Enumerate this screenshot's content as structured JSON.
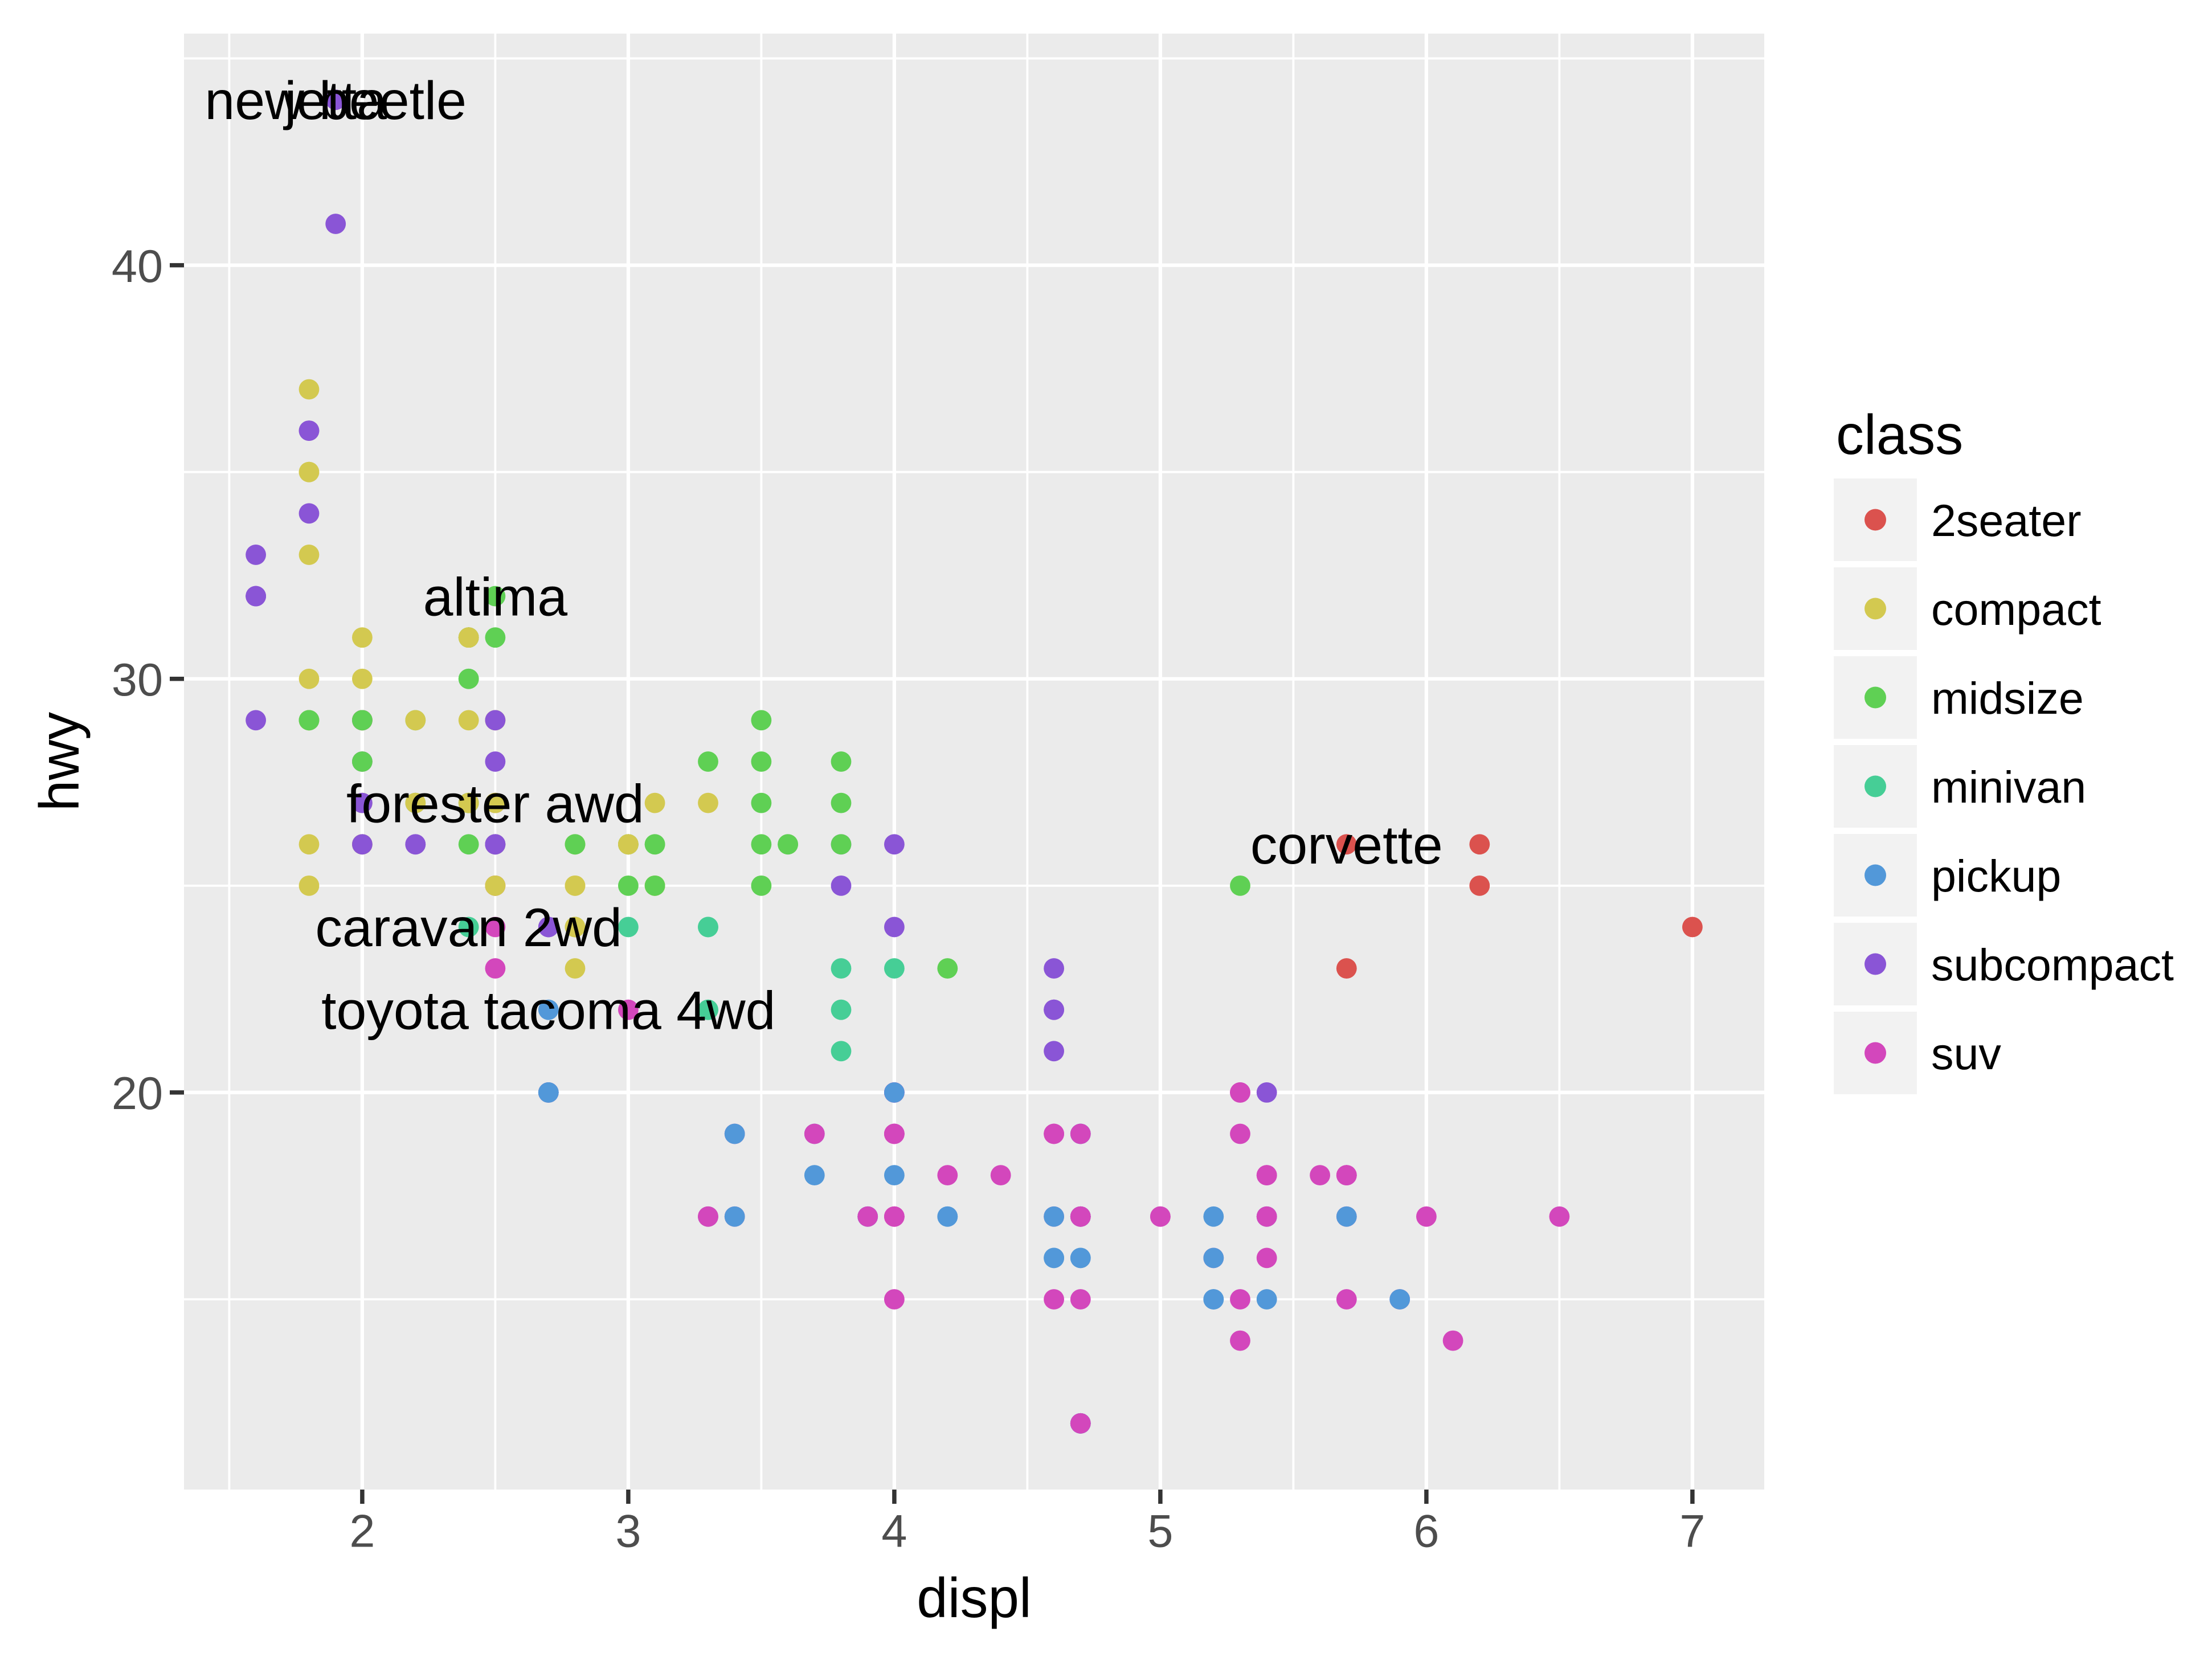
{
  "chart_data": {
    "type": "scatter",
    "title": "",
    "xlabel": "displ",
    "ylabel": "hwy",
    "legend_title": "class",
    "legend_position": "right",
    "grid": "on",
    "xlim": [
      1.33,
      7.27
    ],
    "ylim": [
      10.4,
      45.6
    ],
    "x_major_ticks": [
      2,
      3,
      4,
      5,
      6,
      7
    ],
    "y_major_ticks": [
      20,
      30,
      40
    ],
    "x_minor_ticks": [
      1.5,
      2.5,
      3.5,
      4.5,
      5.5,
      6.5
    ],
    "y_minor_ticks": [
      15,
      25,
      35,
      45
    ],
    "classes": [
      "2seater",
      "compact",
      "midsize",
      "minivan",
      "pickup",
      "subcompact",
      "suv"
    ],
    "palette": {
      "2seater": "#DB524E",
      "compact": "#D3C950",
      "midsize": "#5FD054",
      "minivan": "#46CE96",
      "pickup": "#5298D9",
      "subcompact": "#8A55D6",
      "suv": "#D347BC"
    },
    "columns": [
      "displ",
      "hwy",
      "class"
    ],
    "points": [
      [
        1.8,
        29,
        "compact"
      ],
      [
        1.8,
        29,
        "compact"
      ],
      [
        2.0,
        31,
        "compact"
      ],
      [
        2.0,
        30,
        "compact"
      ],
      [
        2.8,
        26,
        "compact"
      ],
      [
        2.8,
        26,
        "compact"
      ],
      [
        3.1,
        27,
        "compact"
      ],
      [
        1.8,
        26,
        "compact"
      ],
      [
        1.8,
        25,
        "compact"
      ],
      [
        2.0,
        28,
        "compact"
      ],
      [
        2.0,
        27,
        "compact"
      ],
      [
        2.8,
        25,
        "compact"
      ],
      [
        2.8,
        25,
        "compact"
      ],
      [
        3.1,
        25,
        "compact"
      ],
      [
        3.1,
        25,
        "compact"
      ],
      [
        2.8,
        24,
        "midsize"
      ],
      [
        3.1,
        25,
        "midsize"
      ],
      [
        4.2,
        23,
        "midsize"
      ],
      [
        5.3,
        20,
        "suv"
      ],
      [
        5.3,
        15,
        "suv"
      ],
      [
        5.3,
        20,
        "suv"
      ],
      [
        5.7,
        17,
        "suv"
      ],
      [
        6.0,
        17,
        "suv"
      ],
      [
        5.7,
        26,
        "2seater"
      ],
      [
        5.7,
        23,
        "2seater"
      ],
      [
        6.2,
        26,
        "2seater"
      ],
      [
        6.2,
        25,
        "2seater"
      ],
      [
        7.0,
        24,
        "2seater"
      ],
      [
        5.3,
        19,
        "suv"
      ],
      [
        5.3,
        14,
        "suv"
      ],
      [
        5.7,
        15,
        "suv"
      ],
      [
        6.5,
        17,
        "suv"
      ],
      [
        2.4,
        27,
        "midsize"
      ],
      [
        2.4,
        30,
        "midsize"
      ],
      [
        3.1,
        26,
        "midsize"
      ],
      [
        3.5,
        29,
        "midsize"
      ],
      [
        3.6,
        26,
        "midsize"
      ],
      [
        2.4,
        24,
        "minivan"
      ],
      [
        3.0,
        24,
        "minivan"
      ],
      [
        3.3,
        22,
        "minivan"
      ],
      [
        3.3,
        22,
        "minivan"
      ],
      [
        3.3,
        24,
        "minivan"
      ],
      [
        3.3,
        24,
        "minivan"
      ],
      [
        3.3,
        17,
        "minivan"
      ],
      [
        3.8,
        22,
        "minivan"
      ],
      [
        3.8,
        21,
        "minivan"
      ],
      [
        3.8,
        23,
        "minivan"
      ],
      [
        4.0,
        23,
        "minivan"
      ],
      [
        3.7,
        19,
        "pickup"
      ],
      [
        3.7,
        18,
        "pickup"
      ],
      [
        3.9,
        17,
        "pickup"
      ],
      [
        3.9,
        17,
        "pickup"
      ],
      [
        4.7,
        19,
        "pickup"
      ],
      [
        4.7,
        19,
        "pickup"
      ],
      [
        4.7,
        12,
        "pickup"
      ],
      [
        5.2,
        17,
        "pickup"
      ],
      [
        5.2,
        15,
        "pickup"
      ],
      [
        3.9,
        17,
        "suv"
      ],
      [
        4.7,
        17,
        "suv"
      ],
      [
        4.7,
        12,
        "suv"
      ],
      [
        4.7,
        17,
        "suv"
      ],
      [
        5.2,
        16,
        "suv"
      ],
      [
        5.7,
        18,
        "suv"
      ],
      [
        5.9,
        15,
        "suv"
      ],
      [
        4.7,
        16,
        "pickup"
      ],
      [
        4.7,
        12,
        "pickup"
      ],
      [
        4.7,
        17,
        "pickup"
      ],
      [
        4.7,
        17,
        "pickup"
      ],
      [
        4.7,
        16,
        "pickup"
      ],
      [
        4.7,
        12,
        "pickup"
      ],
      [
        5.2,
        15,
        "pickup"
      ],
      [
        5.2,
        16,
        "pickup"
      ],
      [
        5.7,
        17,
        "pickup"
      ],
      [
        5.9,
        15,
        "pickup"
      ],
      [
        4.6,
        17,
        "suv"
      ],
      [
        5.4,
        17,
        "suv"
      ],
      [
        5.4,
        18,
        "suv"
      ],
      [
        4.0,
        17,
        "suv"
      ],
      [
        4.0,
        19,
        "suv"
      ],
      [
        4.0,
        17,
        "suv"
      ],
      [
        4.0,
        19,
        "suv"
      ],
      [
        4.6,
        19,
        "suv"
      ],
      [
        5.0,
        17,
        "suv"
      ],
      [
        4.2,
        17,
        "pickup"
      ],
      [
        4.2,
        17,
        "pickup"
      ],
      [
        4.6,
        16,
        "pickup"
      ],
      [
        4.6,
        16,
        "pickup"
      ],
      [
        4.6,
        17,
        "pickup"
      ],
      [
        5.4,
        15,
        "pickup"
      ],
      [
        5.4,
        17,
        "pickup"
      ],
      [
        3.8,
        26,
        "subcompact"
      ],
      [
        3.8,
        25,
        "subcompact"
      ],
      [
        4.0,
        26,
        "subcompact"
      ],
      [
        4.0,
        24,
        "subcompact"
      ],
      [
        4.6,
        21,
        "subcompact"
      ],
      [
        4.6,
        22,
        "subcompact"
      ],
      [
        4.6,
        23,
        "subcompact"
      ],
      [
        4.6,
        22,
        "subcompact"
      ],
      [
        5.4,
        20,
        "subcompact"
      ],
      [
        1.6,
        33,
        "subcompact"
      ],
      [
        1.6,
        32,
        "subcompact"
      ],
      [
        1.6,
        32,
        "subcompact"
      ],
      [
        1.6,
        29,
        "subcompact"
      ],
      [
        1.6,
        32,
        "subcompact"
      ],
      [
        1.8,
        34,
        "subcompact"
      ],
      [
        1.8,
        36,
        "subcompact"
      ],
      [
        1.8,
        36,
        "subcompact"
      ],
      [
        2.0,
        29,
        "subcompact"
      ],
      [
        2.4,
        26,
        "midsize"
      ],
      [
        2.4,
        27,
        "midsize"
      ],
      [
        2.4,
        30,
        "midsize"
      ],
      [
        2.4,
        31,
        "midsize"
      ],
      [
        2.5,
        26,
        "midsize"
      ],
      [
        2.5,
        26,
        "midsize"
      ],
      [
        3.3,
        28,
        "midsize"
      ],
      [
        2.0,
        26,
        "subcompact"
      ],
      [
        2.0,
        29,
        "subcompact"
      ],
      [
        2.0,
        28,
        "subcompact"
      ],
      [
        2.0,
        27,
        "subcompact"
      ],
      [
        2.7,
        24,
        "subcompact"
      ],
      [
        2.7,
        24,
        "subcompact"
      ],
      [
        2.7,
        24,
        "subcompact"
      ],
      [
        3.0,
        22,
        "suv"
      ],
      [
        3.7,
        19,
        "suv"
      ],
      [
        4.0,
        20,
        "suv"
      ],
      [
        4.7,
        17,
        "suv"
      ],
      [
        4.7,
        12,
        "suv"
      ],
      [
        4.7,
        19,
        "suv"
      ],
      [
        5.7,
        18,
        "suv"
      ],
      [
        6.1,
        14,
        "suv"
      ],
      [
        4.0,
        15,
        "suv"
      ],
      [
        4.2,
        18,
        "suv"
      ],
      [
        4.4,
        18,
        "suv"
      ],
      [
        4.6,
        15,
        "suv"
      ],
      [
        5.4,
        17,
        "suv"
      ],
      [
        5.4,
        16,
        "suv"
      ],
      [
        5.4,
        18,
        "suv"
      ],
      [
        4.0,
        17,
        "suv"
      ],
      [
        4.0,
        19,
        "suv"
      ],
      [
        4.6,
        19,
        "suv"
      ],
      [
        5.0,
        17,
        "suv"
      ],
      [
        2.4,
        29,
        "compact"
      ],
      [
        2.4,
        27,
        "compact"
      ],
      [
        2.5,
        31,
        "midsize"
      ],
      [
        2.5,
        32,
        "midsize"
      ],
      [
        3.5,
        27,
        "midsize"
      ],
      [
        3.5,
        26,
        "midsize"
      ],
      [
        3.0,
        26,
        "midsize"
      ],
      [
        3.0,
        25,
        "midsize"
      ],
      [
        3.5,
        25,
        "midsize"
      ],
      [
        3.3,
        17,
        "suv"
      ],
      [
        3.3,
        17,
        "suv"
      ],
      [
        4.0,
        20,
        "suv"
      ],
      [
        5.6,
        18,
        "suv"
      ],
      [
        3.1,
        26,
        "midsize"
      ],
      [
        3.8,
        26,
        "midsize"
      ],
      [
        3.8,
        27,
        "midsize"
      ],
      [
        3.8,
        28,
        "midsize"
      ],
      [
        5.3,
        25,
        "midsize"
      ],
      [
        2.5,
        25,
        "suv"
      ],
      [
        2.5,
        24,
        "suv"
      ],
      [
        2.5,
        27,
        "suv"
      ],
      [
        2.5,
        25,
        "suv"
      ],
      [
        2.5,
        26,
        "suv"
      ],
      [
        2.5,
        23,
        "suv"
      ],
      [
        2.2,
        26,
        "subcompact"
      ],
      [
        2.2,
        26,
        "subcompact"
      ],
      [
        2.5,
        26,
        "subcompact"
      ],
      [
        2.5,
        26,
        "subcompact"
      ],
      [
        2.5,
        25,
        "compact"
      ],
      [
        2.5,
        27,
        "compact"
      ],
      [
        2.5,
        25,
        "compact"
      ],
      [
        2.5,
        27,
        "compact"
      ],
      [
        2.7,
        20,
        "suv"
      ],
      [
        2.7,
        20,
        "suv"
      ],
      [
        3.4,
        19,
        "suv"
      ],
      [
        3.4,
        17,
        "suv"
      ],
      [
        4.0,
        20,
        "suv"
      ],
      [
        4.7,
        17,
        "suv"
      ],
      [
        2.2,
        29,
        "midsize"
      ],
      [
        2.2,
        27,
        "midsize"
      ],
      [
        2.4,
        31,
        "midsize"
      ],
      [
        2.4,
        31,
        "midsize"
      ],
      [
        3.0,
        26,
        "midsize"
      ],
      [
        3.0,
        26,
        "midsize"
      ],
      [
        3.5,
        28,
        "midsize"
      ],
      [
        2.2,
        27,
        "compact"
      ],
      [
        2.2,
        29,
        "compact"
      ],
      [
        2.4,
        31,
        "compact"
      ],
      [
        2.4,
        31,
        "compact"
      ],
      [
        3.0,
        26,
        "compact"
      ],
      [
        3.0,
        26,
        "compact"
      ],
      [
        3.3,
        27,
        "compact"
      ],
      [
        1.8,
        30,
        "compact"
      ],
      [
        1.8,
        33,
        "compact"
      ],
      [
        1.8,
        35,
        "compact"
      ],
      [
        1.8,
        37,
        "compact"
      ],
      [
        1.8,
        35,
        "compact"
      ],
      [
        4.7,
        15,
        "suv"
      ],
      [
        5.7,
        18,
        "suv"
      ],
      [
        2.7,
        20,
        "pickup"
      ],
      [
        2.7,
        20,
        "pickup"
      ],
      [
        2.7,
        22,
        "pickup"
      ],
      [
        3.4,
        17,
        "pickup"
      ],
      [
        3.4,
        19,
        "pickup"
      ],
      [
        4.0,
        18,
        "pickup"
      ],
      [
        4.0,
        20,
        "pickup"
      ],
      [
        2.0,
        29,
        "compact"
      ],
      [
        2.0,
        26,
        "compact"
      ],
      [
        2.0,
        29,
        "compact"
      ],
      [
        2.0,
        29,
        "compact"
      ],
      [
        2.8,
        24,
        "compact"
      ],
      [
        1.9,
        44,
        "compact"
      ],
      [
        2.0,
        29,
        "compact"
      ],
      [
        2.0,
        26,
        "compact"
      ],
      [
        2.0,
        29,
        "compact"
      ],
      [
        2.0,
        29,
        "compact"
      ],
      [
        2.5,
        29,
        "compact"
      ],
      [
        2.5,
        29,
        "compact"
      ],
      [
        2.8,
        23,
        "compact"
      ],
      [
        2.8,
        24,
        "compact"
      ],
      [
        1.9,
        44,
        "subcompact"
      ],
      [
        1.9,
        41,
        "subcompact"
      ],
      [
        2.0,
        29,
        "subcompact"
      ],
      [
        2.0,
        26,
        "subcompact"
      ],
      [
        2.5,
        28,
        "subcompact"
      ],
      [
        2.5,
        29,
        "subcompact"
      ],
      [
        1.8,
        29,
        "midsize"
      ],
      [
        1.8,
        29,
        "midsize"
      ],
      [
        2.0,
        28,
        "midsize"
      ],
      [
        2.0,
        29,
        "midsize"
      ],
      [
        2.8,
        26,
        "midsize"
      ],
      [
        2.8,
        26,
        "midsize"
      ],
      [
        3.6,
        26,
        "midsize"
      ]
    ],
    "annotations": [
      {
        "label": "corvette",
        "x": 5.7,
        "y": 26
      },
      {
        "label": "caravan 2wd",
        "x": 2.4,
        "y": 24
      },
      {
        "label": "altima",
        "x": 2.5,
        "y": 32
      },
      {
        "label": "forester awd",
        "x": 2.5,
        "y": 27
      },
      {
        "label": "toyota tacoma 4wd",
        "x": 2.7,
        "y": 22
      },
      {
        "label": "jetta",
        "x": 1.9,
        "y": 44
      },
      {
        "label": "new beetle",
        "x": 1.9,
        "y": 44
      }
    ]
  },
  "legend": {
    "title": "class",
    "items": [
      {
        "label": "2seater",
        "color": "#DB524E"
      },
      {
        "label": "compact",
        "color": "#D3C950"
      },
      {
        "label": "midsize",
        "color": "#5FD054"
      },
      {
        "label": "minivan",
        "color": "#46CE96"
      },
      {
        "label": "pickup",
        "color": "#5298D9"
      },
      {
        "label": "subcompact",
        "color": "#8A55D6"
      },
      {
        "label": "suv",
        "color": "#D347BC"
      }
    ]
  },
  "style": {
    "panel_background": "#EBEBEB",
    "grid_color": "#FFFFFF",
    "tick_color": "#333333",
    "tick_label_color": "#4D4D4D",
    "axis_title_color": "#000000",
    "annotation_color": "#000000",
    "legend_key_background": "#F2F2F2",
    "legend_text_color": "#000000",
    "page_background": "#FFFFFF"
  }
}
